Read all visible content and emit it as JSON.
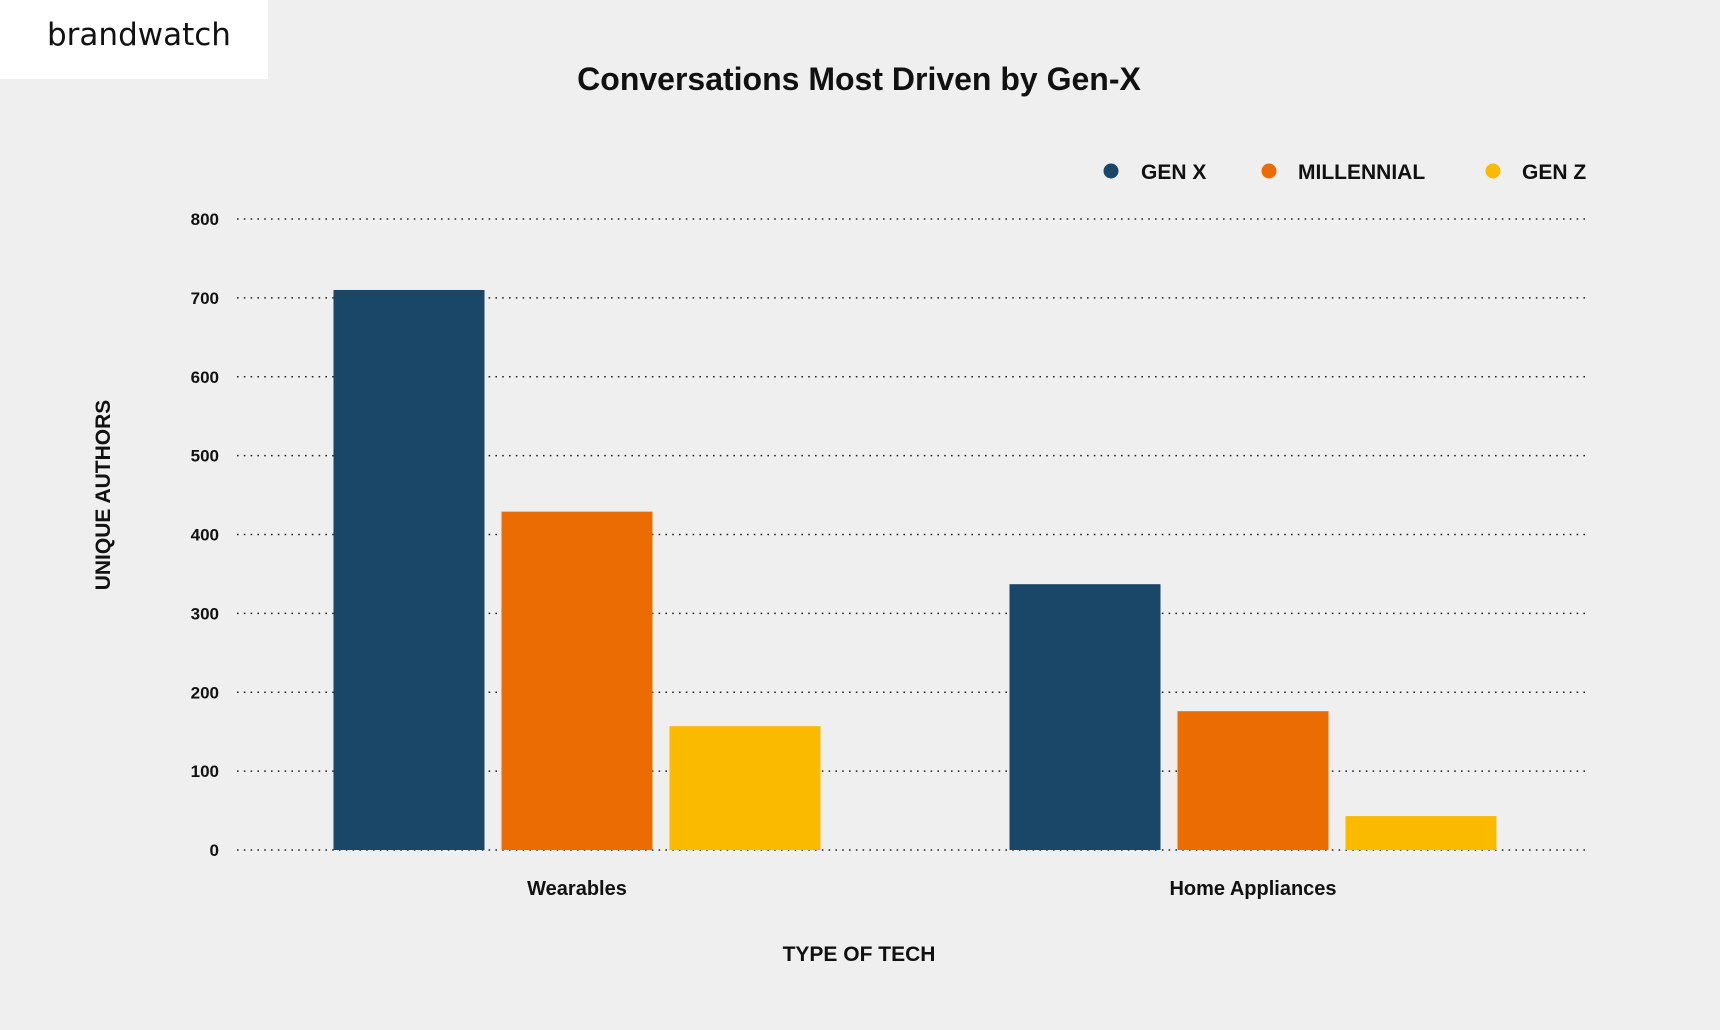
{
  "brand": {
    "name": "brandwatch"
  },
  "chart_data": {
    "type": "bar",
    "title": "Conversations Most Driven by Gen-X",
    "xlabel": "TYPE OF TECH",
    "ylabel": "UNIQUE AUTHORS",
    "categories": [
      "Wearables",
      "Home Appliances"
    ],
    "series": [
      {
        "name": "GEN X",
        "color": "#1a4668",
        "values": [
          710,
          337
        ]
      },
      {
        "name": "MILLENNIAL",
        "color": "#ec6c04",
        "values": [
          429,
          176
        ]
      },
      {
        "name": "GEN Z",
        "color": "#f9ba00",
        "values": [
          157,
          43
        ]
      }
    ],
    "ylim": [
      0,
      800
    ],
    "yticks": [
      "0",
      "100",
      "200",
      "300",
      "400",
      "500",
      "600",
      "700",
      "800"
    ],
    "grid": true,
    "legend_position": "top-right"
  }
}
